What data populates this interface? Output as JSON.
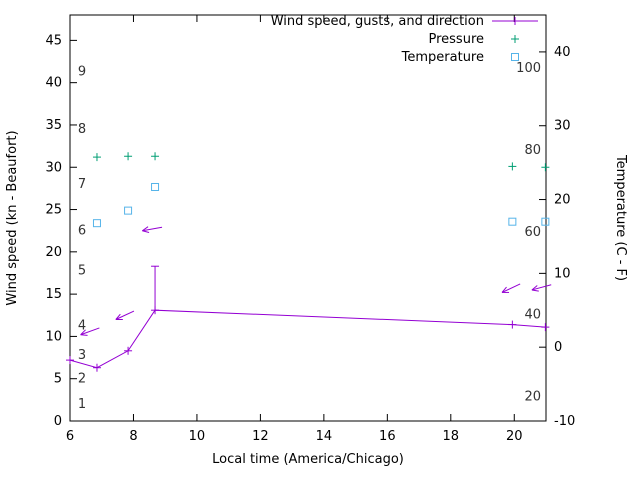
{
  "chart_data": {
    "type": "line",
    "title": "",
    "xlabel": "Local time (America/Chicago)",
    "ylabel_left": "Wind speed (kn - Beaufort)",
    "ylabel_right": "Temperature (C - F)",
    "xlim": [
      6,
      21
    ],
    "ylim_left": [
      0,
      48
    ],
    "ylim_right": [
      -10,
      45
    ],
    "x_ticks": [
      6,
      8,
      10,
      12,
      14,
      16,
      18,
      20
    ],
    "y_ticks_left": [
      0,
      5,
      10,
      15,
      20,
      25,
      30,
      35,
      40,
      45
    ],
    "y_ticks_right": [
      -10,
      0,
      10,
      20,
      30,
      40
    ],
    "grid": false,
    "legend_position": "top-right-inside",
    "axis_color": "#000000",
    "scale_label_color": "#333333",
    "beaufort_labels": [
      {
        "label": "1",
        "kn": 2
      },
      {
        "label": "2",
        "kn": 5
      },
      {
        "label": "3",
        "kn": 7.8
      },
      {
        "label": "4",
        "kn": 11.3
      },
      {
        "label": "5",
        "kn": 17.8
      },
      {
        "label": "6",
        "kn": 22.5
      },
      {
        "label": "7",
        "kn": 28
      },
      {
        "label": "8",
        "kn": 34.5
      },
      {
        "label": "9",
        "kn": 41.3
      }
    ],
    "fahrenheit_labels": [
      {
        "label": "20",
        "c": -6.7
      },
      {
        "label": "40",
        "c": 4.4
      },
      {
        "label": "60",
        "c": 15.6
      },
      {
        "label": "80",
        "c": 26.7
      },
      {
        "label": "100",
        "c": 37.8
      }
    ],
    "series": [
      {
        "name": "Wind speed, gusts, and direction",
        "color": "#9400d3",
        "axis": "left",
        "style": "errorlines",
        "marker": "plus",
        "points": [
          [
            6.0,
            7.2
          ],
          [
            6.85,
            6.3
          ],
          [
            7.83,
            8.3
          ],
          [
            8.68,
            13.1
          ],
          [
            19.94,
            11.4
          ],
          [
            20.98,
            11.1
          ]
        ],
        "gust_bars": [
          {
            "x": 8.68,
            "low": 13.1,
            "high": 18.3
          }
        ]
      },
      {
        "name": "Pressure",
        "color": "#009e73",
        "axis": "left",
        "style": "points",
        "marker": "plus",
        "points": [
          [
            6.85,
            31.2
          ],
          [
            7.83,
            31.3
          ],
          [
            8.68,
            31.3
          ],
          [
            19.94,
            30.1
          ],
          [
            20.98,
            30.0
          ]
        ]
      },
      {
        "name": "Temperature",
        "color": "#56b4e9",
        "axis": "right",
        "style": "points",
        "marker": "square",
        "points": [
          [
            6.85,
            16.8
          ],
          [
            7.83,
            18.5
          ],
          [
            8.68,
            21.7
          ],
          [
            19.94,
            17.0
          ],
          [
            20.98,
            17.0
          ]
        ]
      }
    ],
    "wind_direction_arrows": [
      {
        "x": 6.63,
        "y": 10.6,
        "angle": 200
      },
      {
        "x": 7.73,
        "y": 12.5,
        "angle": 205
      },
      {
        "x": 8.59,
        "y": 22.7,
        "angle": 190
      },
      {
        "x": 19.9,
        "y": 15.7,
        "angle": 205
      },
      {
        "x": 20.86,
        "y": 15.8,
        "angle": 195
      }
    ]
  }
}
